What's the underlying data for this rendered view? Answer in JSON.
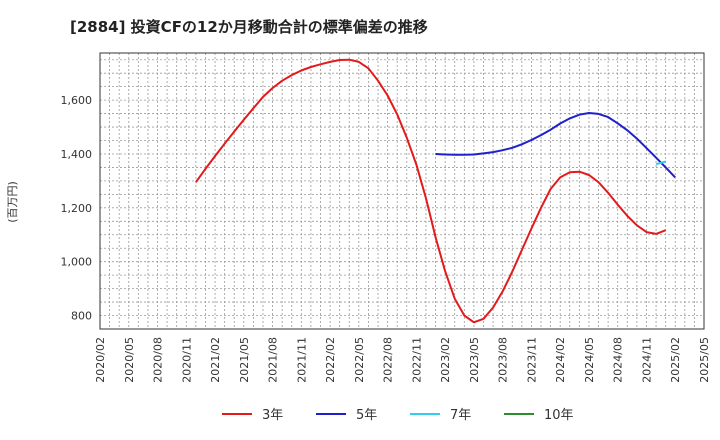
{
  "chart_data": {
    "type": "line",
    "title": "[2884]  投資CFの12か月移動合計の標準偏差の推移",
    "ylabel": "(百万円)",
    "ylim": [
      750,
      1775
    ],
    "yticks": [
      800,
      1000,
      1200,
      1400,
      1600
    ],
    "ytick_labels": [
      "800",
      "1,000",
      "1,200",
      "1,400",
      "1,600"
    ],
    "x_start": "2020/02",
    "x_end": "2025/05",
    "xtick_labels": [
      "2020/02",
      "2020/05",
      "2020/08",
      "2020/11",
      "2021/02",
      "2021/05",
      "2021/08",
      "2021/11",
      "2022/02",
      "2022/05",
      "2022/08",
      "2022/11",
      "2023/02",
      "2023/05",
      "2023/08",
      "2023/11",
      "2024/02",
      "2024/05",
      "2024/08",
      "2024/11",
      "2025/02",
      "2025/05"
    ],
    "grid": true,
    "legend_position": "bottom",
    "series": [
      {
        "name": "3年",
        "color": "#e31a1c",
        "points": [
          [
            "2020/12",
            1295
          ],
          [
            "2021/01",
            1345
          ],
          [
            "2021/02",
            1392
          ],
          [
            "2021/03",
            1438
          ],
          [
            "2021/04",
            1483
          ],
          [
            "2021/05",
            1527
          ],
          [
            "2021/06",
            1570
          ],
          [
            "2021/07",
            1612
          ],
          [
            "2021/08",
            1645
          ],
          [
            "2021/09",
            1672
          ],
          [
            "2021/10",
            1693
          ],
          [
            "2021/11",
            1710
          ],
          [
            "2021/12",
            1723
          ],
          [
            "2022/01",
            1733
          ],
          [
            "2022/02",
            1742
          ],
          [
            "2022/03",
            1749
          ],
          [
            "2022/04",
            1750
          ],
          [
            "2022/05",
            1742
          ],
          [
            "2022/06",
            1718
          ],
          [
            "2022/07",
            1672
          ],
          [
            "2022/08",
            1617
          ],
          [
            "2022/09",
            1547
          ],
          [
            "2022/10",
            1460
          ],
          [
            "2022/11",
            1360
          ],
          [
            "2022/12",
            1235
          ],
          [
            "2023/01",
            1090
          ],
          [
            "2023/02",
            965
          ],
          [
            "2023/03",
            863
          ],
          [
            "2023/04",
            800
          ],
          [
            "2023/05",
            775
          ],
          [
            "2023/06",
            788
          ],
          [
            "2023/07",
            830
          ],
          [
            "2023/08",
            890
          ],
          [
            "2023/09",
            963
          ],
          [
            "2023/10",
            1043
          ],
          [
            "2023/11",
            1123
          ],
          [
            "2023/12",
            1200
          ],
          [
            "2024/01",
            1270
          ],
          [
            "2024/02",
            1313
          ],
          [
            "2024/03",
            1332
          ],
          [
            "2024/04",
            1334
          ],
          [
            "2024/05",
            1322
          ],
          [
            "2024/06",
            1295
          ],
          [
            "2024/07",
            1256
          ],
          [
            "2024/08",
            1212
          ],
          [
            "2024/09",
            1170
          ],
          [
            "2024/10",
            1135
          ],
          [
            "2024/11",
            1110
          ],
          [
            "2024/12",
            1103
          ],
          [
            "2025/01",
            1117
          ]
        ]
      },
      {
        "name": "5年",
        "color": "#1f1fcc",
        "points": [
          [
            "2023/01",
            1400
          ],
          [
            "2023/02",
            1398
          ],
          [
            "2023/03",
            1397
          ],
          [
            "2023/04",
            1397
          ],
          [
            "2023/05",
            1398
          ],
          [
            "2023/06",
            1402
          ],
          [
            "2023/07",
            1407
          ],
          [
            "2023/08",
            1414
          ],
          [
            "2023/09",
            1423
          ],
          [
            "2023/10",
            1436
          ],
          [
            "2023/11",
            1452
          ],
          [
            "2023/12",
            1470
          ],
          [
            "2024/01",
            1490
          ],
          [
            "2024/02",
            1513
          ],
          [
            "2024/03",
            1532
          ],
          [
            "2024/04",
            1546
          ],
          [
            "2024/05",
            1552
          ],
          [
            "2024/06",
            1549
          ],
          [
            "2024/07",
            1537
          ],
          [
            "2024/08",
            1514
          ],
          [
            "2024/09",
            1488
          ],
          [
            "2024/10",
            1457
          ],
          [
            "2024/11",
            1422
          ],
          [
            "2024/12",
            1386
          ],
          [
            "2025/01",
            1350
          ],
          [
            "2025/02",
            1313
          ]
        ]
      },
      {
        "name": "7年",
        "color": "#33ccee",
        "points": [
          [
            "2024/12",
            1362
          ],
          [
            "2025/01",
            1372
          ]
        ]
      },
      {
        "name": "10年",
        "color": "#2e8b2e",
        "points": []
      }
    ]
  }
}
